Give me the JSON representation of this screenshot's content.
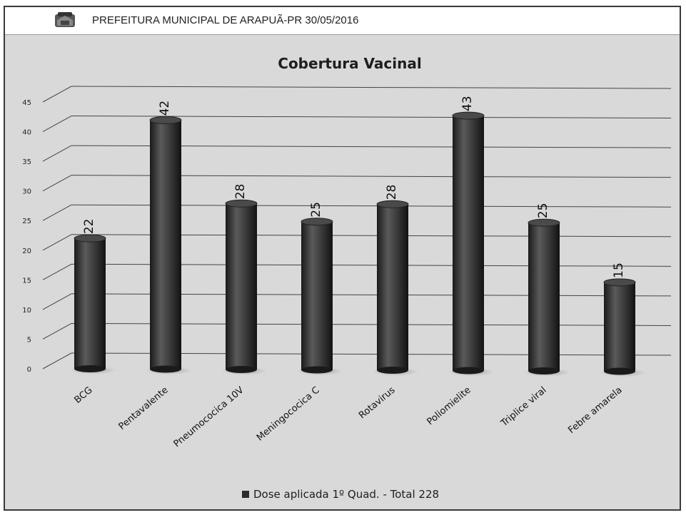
{
  "header": {
    "text": "PREFEITURA MUNICIPAL DE ARAPUÃ-PR 30/05/2016"
  },
  "chart_data": {
    "type": "bar",
    "title": "Cobertura Vacinal",
    "categories": [
      "BCG",
      "Pentavalente",
      "Pneumococica 10V",
      "Meningococica C",
      "Rotavirus",
      "Poliomielite",
      "Triplice viral",
      "Febre amarela"
    ],
    "series": [
      {
        "name": "Dose aplicada 1º Quad. - Total 228",
        "values": [
          22,
          42,
          28,
          25,
          28,
          43,
          25,
          15
        ]
      }
    ],
    "ylim": [
      0,
      45
    ],
    "yticks": [
      0,
      5,
      10,
      15,
      20,
      25,
      30,
      35,
      40,
      45
    ],
    "grid": true,
    "legend": "bottom",
    "bar_color": "#2b2b2b"
  }
}
